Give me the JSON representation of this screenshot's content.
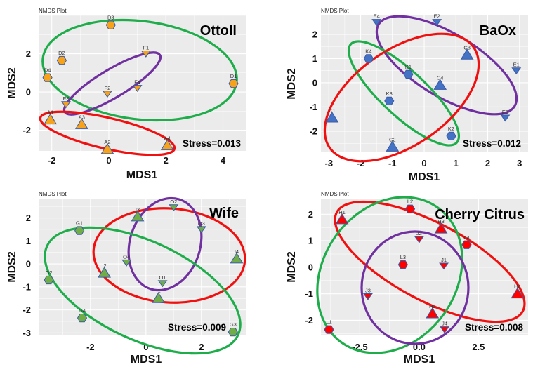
{
  "chart_data": [
    {
      "type": "scatter",
      "caption": "NMDS Plot",
      "title": "Ottoll",
      "stress": "Stress=0.013",
      "xlabel": "MDS1",
      "ylabel": "MDS2",
      "xticks": [
        -2,
        0,
        2,
        4
      ],
      "yticks": [
        -2,
        0,
        2
      ],
      "xlim": [
        -2.46,
        4.8
      ],
      "ylim": [
        -3.08,
        4.0
      ],
      "fill": "#f7a21b",
      "groups": [
        {
          "prefix": "D",
          "shape": "hexagon",
          "ellipse_color": "#1fad4b"
        },
        {
          "prefix": "F",
          "shape": "triangle-down",
          "ellipse_color": "#7030a0"
        },
        {
          "prefix": "A",
          "shape": "triangle-up",
          "ellipse_color": "#f01010"
        }
      ],
      "points": [
        {
          "label": "D3",
          "x": 0.07,
          "y": 3.5
        },
        {
          "label": "D2",
          "x": -1.65,
          "y": 1.65
        },
        {
          "label": "D4",
          "x": -2.15,
          "y": 0.75
        },
        {
          "label": "D1",
          "x": 4.37,
          "y": 0.44
        },
        {
          "label": "F1",
          "x": 1.3,
          "y": 2.0
        },
        {
          "label": "F4",
          "x": 1.0,
          "y": 0.2
        },
        {
          "label": "F2",
          "x": -0.05,
          "y": -0.1
        },
        {
          "label": "F3",
          "x": -1.5,
          "y": -0.65
        },
        {
          "label": "A1",
          "x": -2.05,
          "y": -1.45
        },
        {
          "label": "A3",
          "x": -0.95,
          "y": -1.7
        },
        {
          "label": "A2",
          "x": -0.05,
          "y": -3.0
        },
        {
          "label": "A4",
          "x": 2.05,
          "y": -2.8
        }
      ]
    },
    {
      "type": "scatter",
      "caption": "NMDS Plot",
      "title": "BaOx",
      "stress": "Stress=0.012",
      "xlabel": "MDS1",
      "ylabel": "MDS2",
      "xticks": [
        -3,
        -2,
        -1,
        0,
        1,
        2,
        3
      ],
      "yticks": [
        -2,
        -1,
        0,
        1,
        2
      ],
      "xlim": [
        -3.25,
        3.27
      ],
      "ylim": [
        -2.87,
        2.78
      ],
      "fill": "#4472c4",
      "groups": [
        {
          "prefix": "E",
          "shape": "triangle-down",
          "ellipse_color": "#7030a0"
        },
        {
          "prefix": "K",
          "shape": "hexagon",
          "ellipse_color": "#1fad4b"
        },
        {
          "prefix": "C",
          "shape": "triangle-up",
          "ellipse_color": "#f01010"
        }
      ],
      "points": [
        {
          "label": "E4",
          "x": -1.5,
          "y": 2.5
        },
        {
          "label": "E2",
          "x": 0.4,
          "y": 2.5
        },
        {
          "label": "K4",
          "x": -1.75,
          "y": 1.0
        },
        {
          "label": "C3",
          "x": 1.35,
          "y": 1.15
        },
        {
          "label": "E1",
          "x": 2.9,
          "y": 0.5
        },
        {
          "label": "K1",
          "x": -0.5,
          "y": 0.35
        },
        {
          "label": "C4",
          "x": 0.5,
          "y": -0.1
        },
        {
          "label": "K3",
          "x": -1.1,
          "y": -0.75
        },
        {
          "label": "C1",
          "x": -2.9,
          "y": -1.45
        },
        {
          "label": "K2",
          "x": 0.85,
          "y": -2.2
        },
        {
          "label": "C2",
          "x": -1.0,
          "y": -2.65
        },
        {
          "label": "E3",
          "x": 2.55,
          "y": -1.45
        }
      ]
    },
    {
      "type": "scatter",
      "caption": "NMDS Plot",
      "title": "Wife",
      "stress": "Stress=0.009",
      "xlabel": "MDS1",
      "ylabel": "MDS2",
      "xticks": [
        -2,
        0,
        2
      ],
      "yticks": [
        -3,
        -2,
        -1,
        0,
        1,
        2
      ],
      "xlim": [
        -3.87,
        3.6
      ],
      "ylim": [
        -3.11,
        2.84
      ],
      "fill": "#70ad47",
      "groups": [
        {
          "prefix": "I",
          "shape": "triangle-up",
          "ellipse_color": "#f01010"
        },
        {
          "prefix": "O",
          "shape": "triangle-down",
          "ellipse_color": "#7030a0"
        },
        {
          "prefix": "G",
          "shape": "hexagon",
          "ellipse_color": "#1fad4b"
        }
      ],
      "points": [
        {
          "label": "G1",
          "x": -2.4,
          "y": 1.45
        },
        {
          "label": "I3",
          "x": -0.3,
          "y": 2.05
        },
        {
          "label": "O2",
          "x": 1.0,
          "y": 2.45
        },
        {
          "label": "O3",
          "x": 2.0,
          "y": 1.5
        },
        {
          "label": "I4",
          "x": 3.27,
          "y": 0.22
        },
        {
          "label": "O4",
          "x": -0.7,
          "y": 0.05
        },
        {
          "label": "I2",
          "x": -1.5,
          "y": -0.4
        },
        {
          "label": "G2",
          "x": -3.5,
          "y": -0.7
        },
        {
          "label": "O1",
          "x": 0.6,
          "y": -0.85
        },
        {
          "label": "I1",
          "x": 0.45,
          "y": -1.5
        },
        {
          "label": "G4",
          "x": -2.3,
          "y": -2.35
        },
        {
          "label": "G3",
          "x": 3.14,
          "y": -2.96
        }
      ]
    },
    {
      "type": "scatter",
      "caption": "NMDS Plot",
      "title": "Cherry Citrus",
      "stress": "Stress=0.008",
      "xlabel": "MDS1",
      "ylabel": "MDS2",
      "xticks": [
        -2.5,
        0.0,
        2.5
      ],
      "xtick_labels": [
        "-2.5",
        "0.0",
        "2.5"
      ],
      "yticks": [
        -2,
        -1,
        0,
        1,
        2
      ],
      "xlim": [
        -4.14,
        4.59
      ],
      "ylim": [
        -2.57,
        2.59
      ],
      "fill": "#ff0000",
      "groups": [
        {
          "prefix": "H",
          "shape": "triangle-up",
          "ellipse_color": "#f01010"
        },
        {
          "prefix": "L",
          "shape": "hexagon",
          "ellipse_color": "#1fad4b"
        },
        {
          "prefix": "J",
          "shape": "triangle-down",
          "ellipse_color": "#7030a0"
        }
      ],
      "points": [
        {
          "label": "H1",
          "x": -3.25,
          "y": 1.8
        },
        {
          "label": "L2",
          "x": -0.38,
          "y": 2.2
        },
        {
          "label": "H3",
          "x": 0.92,
          "y": 1.45
        },
        {
          "label": "J2",
          "x": 0.0,
          "y": 1.05
        },
        {
          "label": "L4",
          "x": 2.0,
          "y": 0.85
        },
        {
          "label": "L3",
          "x": -0.68,
          "y": 0.1
        },
        {
          "label": "J1",
          "x": 1.04,
          "y": 0.05
        },
        {
          "label": "H4",
          "x": 4.14,
          "y": -1.0
        },
        {
          "label": "J3",
          "x": -2.16,
          "y": -1.1
        },
        {
          "label": "H2",
          "x": 0.56,
          "y": -1.75
        },
        {
          "label": "L1",
          "x": -3.8,
          "y": -2.35
        },
        {
          "label": "J4",
          "x": 1.07,
          "y": -2.35
        }
      ]
    }
  ]
}
